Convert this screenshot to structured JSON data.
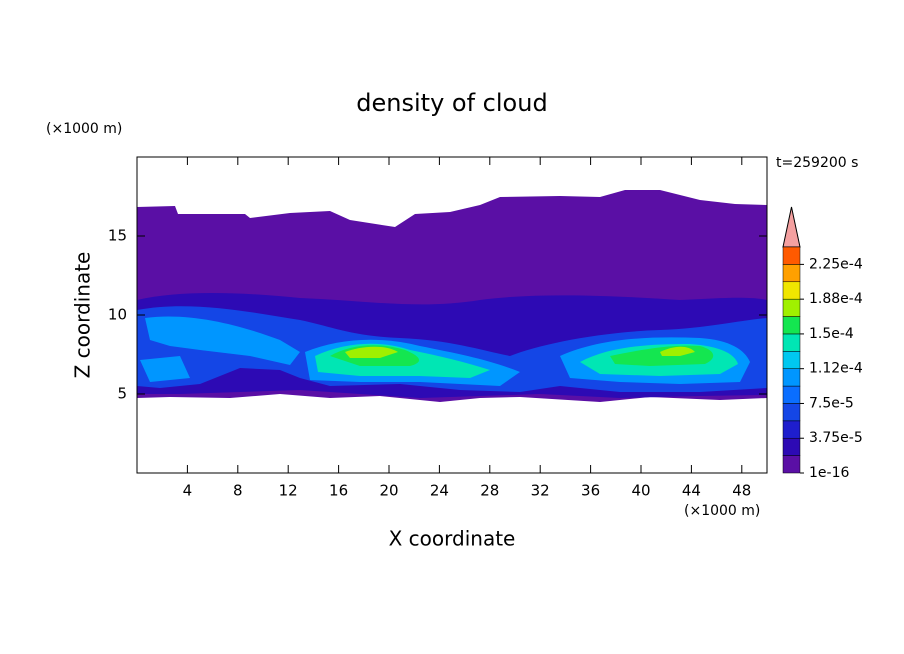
{
  "chart_data": {
    "type": "contour",
    "title": "density of cloud",
    "x_label": "X coordinate",
    "y_label": "Z coordinate",
    "x_unit": "(×1000 m)",
    "y_unit": "(×1000 m)",
    "annotation": "t=259200 s",
    "xlim": [
      0,
      50
    ],
    "ylim": [
      0,
      20
    ],
    "xticks": [
      4,
      8,
      12,
      16,
      20,
      24,
      28,
      32,
      36,
      40,
      44,
      48
    ],
    "yticks": [
      5,
      10,
      15
    ],
    "colorbar": {
      "lim": [
        1e-16,
        0.00024375
      ],
      "colors": [
        "#5a0fa5",
        "#2d0ab4",
        "#1e1ecd",
        "#1446e6",
        "#0a6eff",
        "#0096ff",
        "#00c8f0",
        "#00e6b4",
        "#14e650",
        "#a0f000",
        "#f0e600",
        "#ffa000",
        "#ff5a00"
      ],
      "ticks": [
        {
          "value": 1e-16,
          "label": "1e-16"
        },
        {
          "value": 3.75e-05,
          "label": "3.75e-5"
        },
        {
          "value": 7.5e-05,
          "label": "7.5e-5"
        },
        {
          "value": 0.0001125,
          "label": "1.12e-4"
        },
        {
          "value": 0.00015,
          "label": "1.5e-4"
        },
        {
          "value": 0.0001875,
          "label": "1.88e-4"
        },
        {
          "value": 0.000225,
          "label": "2.25e-4"
        }
      ]
    }
  }
}
